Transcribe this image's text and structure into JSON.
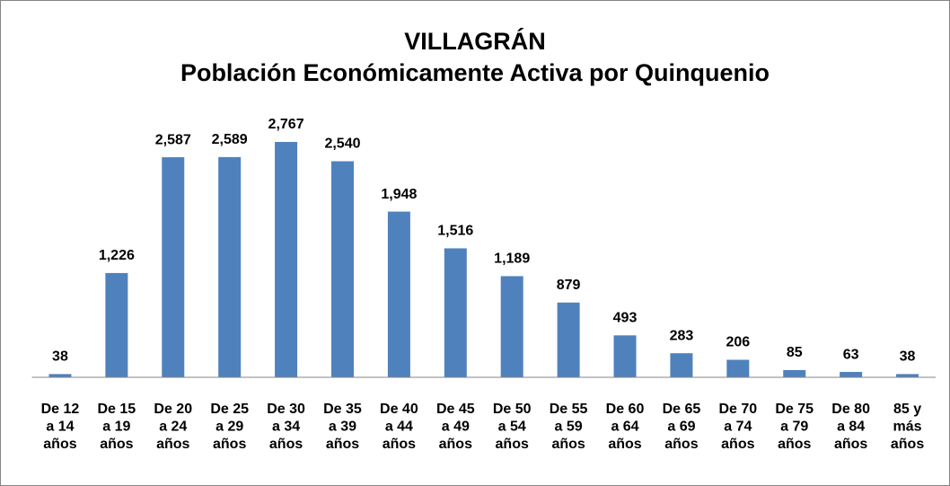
{
  "chart_data": {
    "type": "bar",
    "title": "VILLAGRÁN",
    "subtitle": "Población Económicamente Activa por Quinquenio",
    "categories": [
      [
        "De 12",
        "a 14",
        "años"
      ],
      [
        "De 15",
        "a 19",
        "años"
      ],
      [
        "De 20",
        "a 24",
        "años"
      ],
      [
        "De 25",
        "a 29",
        "años"
      ],
      [
        "De 30",
        "a 34",
        "años"
      ],
      [
        "De 35",
        "a 39",
        "años"
      ],
      [
        "De 40",
        "a 44",
        "años"
      ],
      [
        "De 45",
        "a 49",
        "años"
      ],
      [
        "De 50",
        "a 54",
        "años"
      ],
      [
        "De 55",
        "a 59",
        "años"
      ],
      [
        "De 60",
        "a 64",
        "años"
      ],
      [
        "De 65",
        "a 69",
        "años"
      ],
      [
        "De 70",
        "a 74",
        "años"
      ],
      [
        "De 75",
        "a 79",
        "años"
      ],
      [
        "De 80",
        "a 84",
        "años"
      ],
      [
        "85 y",
        "más",
        "años"
      ]
    ],
    "values": [
      38,
      1226,
      2587,
      2589,
      2767,
      2540,
      1948,
      1516,
      1189,
      879,
      493,
      283,
      206,
      85,
      63,
      38
    ],
    "value_labels": [
      "38",
      "1,226",
      "2,587",
      "2,589",
      "2,767",
      "2,540",
      "1,948",
      "1,516",
      "1,189",
      "879",
      "493",
      "283",
      "206",
      "85",
      "63",
      "38"
    ],
    "color": "#4f81bd"
  }
}
